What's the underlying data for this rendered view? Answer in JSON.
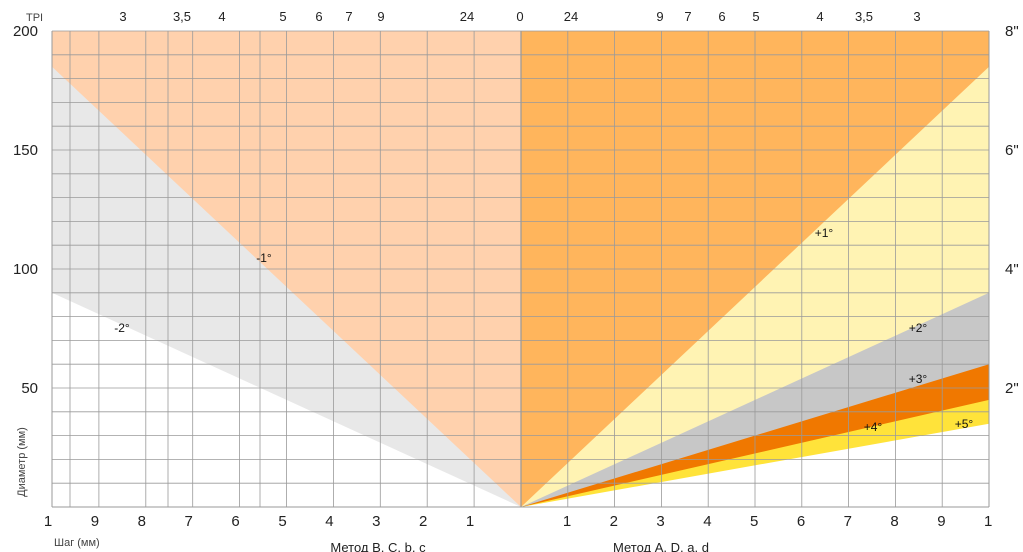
{
  "chart_data": {
    "type": "area",
    "title": "",
    "ylabel": "Диаметр (мм)",
    "xlabel_left": "Шаг (мм)",
    "method_left": "Метод B, C, b, c",
    "method_right": "Метод A, D, a, d",
    "tpi_label": "TPI",
    "tpi_center": "0",
    "ylim": [
      0,
      200
    ],
    "yticks": [
      50,
      100,
      150,
      200
    ],
    "inch_ticks": [
      {
        "label": "2\"",
        "y": 50
      },
      {
        "label": "4\"",
        "y": 100
      },
      {
        "label": "6\"",
        "y": 150
      },
      {
        "label": "8\"",
        "y": 200
      }
    ],
    "pitch_ticks_left": [
      "1",
      "9",
      "8",
      "7",
      "6",
      "5",
      "4",
      "3",
      "2",
      "1"
    ],
    "pitch_ticks_right": [
      "1",
      "2",
      "3",
      "4",
      "5",
      "6",
      "7",
      "8",
      "9",
      "1"
    ],
    "tpi_ticks_left": [
      "3",
      "3,5",
      "4",
      "5",
      "6",
      "7",
      "9",
      "24"
    ],
    "tpi_ticks_right": [
      "24",
      "9",
      "7",
      "6",
      "5",
      "4",
      "3,5",
      "3"
    ],
    "series": [
      {
        "name": "-2°",
        "side": "left",
        "color": "#e8e8e8",
        "y_at_edge": 90
      },
      {
        "name": "-1°",
        "side": "left",
        "color": "#ffd1ad",
        "y_at_edge": 185
      },
      {
        "name": "+1°",
        "side": "right",
        "color": "#fff3b3",
        "y_at_edge": 185
      },
      {
        "name": "+2°",
        "side": "right",
        "color": "#c7c7c7",
        "y_at_edge": 90
      },
      {
        "name": "+3°",
        "side": "right",
        "color": "#f07800",
        "y_at_edge": 60
      },
      {
        "name": "+4°",
        "side": "right",
        "color": "#ffe33a",
        "y_at_edge": 45
      },
      {
        "name": "+5°",
        "side": "right",
        "color": "#ffe33a",
        "y_at_edge": 35
      }
    ],
    "right_fill": {
      "color": "#ffb55c"
    },
    "colors": {
      "grid": "#9a9a9a",
      "center_line": "#999999"
    }
  }
}
